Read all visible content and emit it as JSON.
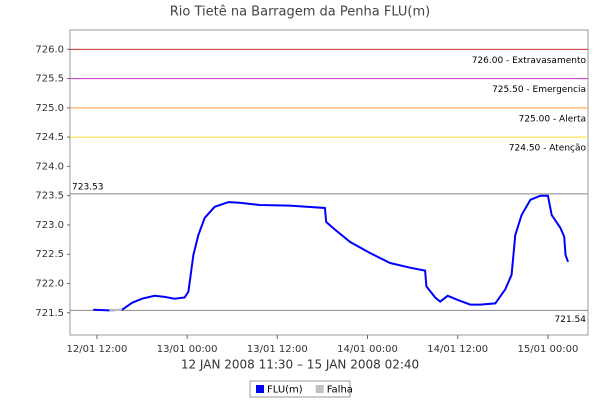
{
  "chart_data": {
    "type": "line",
    "title": "Rio Tietê na Barragem da Penha FLU(m)",
    "x_label": "12 JAN 2008 11:30 – 15 JAN 2008 02:40",
    "x": [
      "2008-01-12T11:30",
      "2008-01-12T13:40",
      "2008-01-12T15:20",
      "2008-01-12T16:40",
      "2008-01-12T18:00",
      "2008-01-12T19:40",
      "2008-01-12T21:00",
      "2008-01-12T22:20",
      "2008-01-12T23:40",
      "2008-01-13T00:10",
      "2008-01-13T00:50",
      "2008-01-13T01:30",
      "2008-01-13T02:20",
      "2008-01-13T03:40",
      "2008-01-13T05:30",
      "2008-01-13T07:00",
      "2008-01-13T09:40",
      "2008-01-13T13:40",
      "2008-01-13T18:20",
      "2008-01-13T18:30",
      "2008-01-13T19:40",
      "2008-01-13T21:40",
      "2008-01-14T00:20",
      "2008-01-14T03:00",
      "2008-01-14T05:40",
      "2008-01-14T07:40",
      "2008-01-14T07:50",
      "2008-01-14T09:00",
      "2008-01-14T09:40",
      "2008-01-14T10:40",
      "2008-01-14T12:00",
      "2008-01-14T13:40",
      "2008-01-14T15:00",
      "2008-01-14T17:00",
      "2008-01-14T18:20",
      "2008-01-14T19:10",
      "2008-01-14T19:40",
      "2008-01-14T20:30",
      "2008-01-14T21:40",
      "2008-01-14T23:00",
      "2008-01-15T00:00",
      "2008-01-15T00:30",
      "2008-01-15T01:40",
      "2008-01-15T02:10",
      "2008-01-15T02:20",
      "2008-01-15T02:40"
    ],
    "series": [
      {
        "name": "FLU(m)",
        "color": "#0000ff",
        "values": [
          721.55,
          721.54,
          721.55,
          721.67,
          721.74,
          721.79,
          721.77,
          721.74,
          721.76,
          721.86,
          722.49,
          722.83,
          723.12,
          723.31,
          723.39,
          723.38,
          723.34,
          723.33,
          723.29,
          723.05,
          722.92,
          722.71,
          722.52,
          722.35,
          722.27,
          722.22,
          721.95,
          721.76,
          721.69,
          721.79,
          721.72,
          721.64,
          721.64,
          721.66,
          721.9,
          722.15,
          722.83,
          723.17,
          723.43,
          723.5,
          723.5,
          723.17,
          722.95,
          722.8,
          722.49,
          722.37
        ]
      },
      {
        "name": "Falha",
        "color": "#c0c0c0",
        "values": [
          null,
          721.54,
          721.55,
          null,
          null,
          null,
          null,
          null,
          null,
          null,
          null,
          null,
          null,
          null,
          null,
          null,
          null,
          null,
          null,
          null,
          null,
          null,
          null,
          null,
          null,
          null,
          null,
          null,
          null,
          null,
          null,
          null,
          null,
          null,
          null,
          null,
          null,
          null,
          null,
          null,
          null,
          null,
          null,
          null,
          null,
          null
        ]
      }
    ],
    "xlim": [
      "2008-01-12T08:25",
      "2008-01-15T05:20"
    ],
    "xticks": [
      {
        "value": "2008-01-12T12:00",
        "label": "12/01 12:00"
      },
      {
        "value": "2008-01-13T00:00",
        "label": "13/01 00:00"
      },
      {
        "value": "2008-01-13T12:00",
        "label": "13/01 12:00"
      },
      {
        "value": "2008-01-14T00:00",
        "label": "14/01 00:00"
      },
      {
        "value": "2008-01-14T12:00",
        "label": "14/01 12:00"
      },
      {
        "value": "2008-01-15T00:00",
        "label": "15/01 00:00"
      }
    ],
    "ylim": [
      721.12,
      726.33
    ],
    "yticks": [
      {
        "value": 721.5,
        "label": "721.5"
      },
      {
        "value": 722,
        "label": "722.0"
      },
      {
        "value": 722.5,
        "label": "722.5"
      },
      {
        "value": 723,
        "label": "723.0"
      },
      {
        "value": 723.5,
        "label": "723.5"
      },
      {
        "value": 724,
        "label": "724.0"
      },
      {
        "value": 724.5,
        "label": "724.5"
      },
      {
        "value": 725,
        "label": "725.0"
      },
      {
        "value": 725.5,
        "label": "725.5"
      },
      {
        "value": 726,
        "label": "726.0"
      }
    ],
    "thresholds": [
      {
        "value": 726,
        "label": "726.00 - Extravasamento",
        "color": "#cc3333"
      },
      {
        "value": 725.5,
        "label": "725.50 - Emergencia",
        "color": "#cc33cc"
      },
      {
        "value": 725,
        "label": "725.00 - Alerta",
        "color": "#ff9933"
      },
      {
        "value": 724.5,
        "label": "724.50 - Atenção",
        "color": "#ffdd33"
      }
    ],
    "max_line": {
      "value": 723.53,
      "color": "#888888"
    },
    "min_line": {
      "value": 721.54,
      "color": "#888888"
    },
    "grid": false
  }
}
